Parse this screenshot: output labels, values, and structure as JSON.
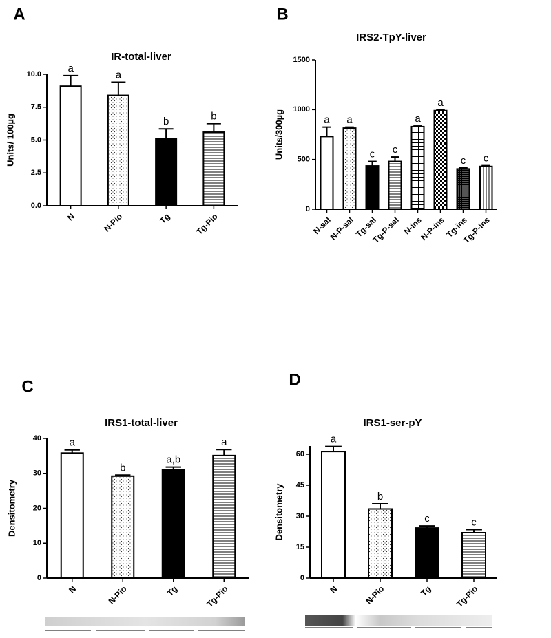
{
  "chart_data": [
    {
      "type": "bar",
      "label": "A",
      "title": "IR-total-liver",
      "y_label": "Units/ 100µg",
      "categories": [
        "N",
        "N-Pio",
        "Tg",
        "Tg-Pio"
      ],
      "values": [
        9.1,
        8.4,
        5.1,
        5.6
      ],
      "errors": [
        0.8,
        1.0,
        0.75,
        0.65
      ],
      "annotations": [
        "a",
        "a",
        "b",
        "b"
      ],
      "patterns": [
        "white",
        "dots",
        "black",
        "hlines"
      ],
      "color": "#000000",
      "ylim": [
        0,
        10
      ],
      "yticks": [
        {
          "value": 0,
          "label": "0.0"
        },
        {
          "value": 2.5,
          "label": "2.5"
        },
        {
          "value": 5,
          "label": "5.0"
        },
        {
          "value": 7.5,
          "label": "7.5"
        },
        {
          "value": 10,
          "label": "10.0"
        }
      ]
    },
    {
      "type": "bar",
      "label": "B",
      "title": "IRS2-TpY-liver",
      "y_label": "Units/300µg",
      "categories": [
        "N-sal",
        "N-P-sal",
        "Tg-sal",
        "Tg-P-sal",
        "N-ins",
        "N-P-ins",
        "Tg-ins",
        "Tg-P-ins"
      ],
      "values": [
        730,
        815,
        435,
        480,
        830,
        990,
        405,
        430
      ],
      "errors": [
        95,
        10,
        45,
        45,
        6,
        6,
        10,
        8
      ],
      "annotations": [
        "a",
        "a",
        "c",
        "c",
        "a",
        "a",
        "c",
        "c"
      ],
      "patterns": [
        "white",
        "dots",
        "black",
        "hlines",
        "grid",
        "checker",
        "darkgrid",
        "vlines"
      ],
      "color": "#000000",
      "ylim": [
        0,
        1500
      ],
      "yticks": [
        0,
        500,
        1000,
        1500
      ]
    },
    {
      "type": "bar",
      "label": "C",
      "title": "IRS1-total-liver",
      "y_label": "Densitometry",
      "categories": [
        "N",
        "N-Pio",
        "Tg",
        "Tg-Pio"
      ],
      "values": [
        35.8,
        29.2,
        31.1,
        35.1
      ],
      "errors": [
        0.9,
        0.3,
        0.7,
        1.7
      ],
      "annotations": [
        "a",
        "b",
        "a,b",
        "a"
      ],
      "patterns": [
        "white",
        "dots",
        "black",
        "hlines"
      ],
      "color": "#000000",
      "ylim": [
        0,
        40
      ],
      "yticks": [
        0,
        10,
        20,
        30,
        40
      ]
    },
    {
      "type": "bar",
      "label": "D",
      "title": "IRS1-ser-pY",
      "y_label": "Densitometry",
      "categories": [
        "N",
        "N-Pio",
        "Tg",
        "Tg-Pio"
      ],
      "values": [
        61.3,
        33.5,
        24.3,
        22
      ],
      "errors": [
        2.5,
        2.5,
        1.0,
        1.5
      ],
      "annotations": [
        "a",
        "b",
        "c",
        "c"
      ],
      "patterns": [
        "white",
        "dots",
        "black",
        "hlines"
      ],
      "color": "#000000",
      "ylim": [
        0,
        64
      ],
      "yticks": [
        0,
        15,
        30,
        45,
        60
      ]
    }
  ]
}
